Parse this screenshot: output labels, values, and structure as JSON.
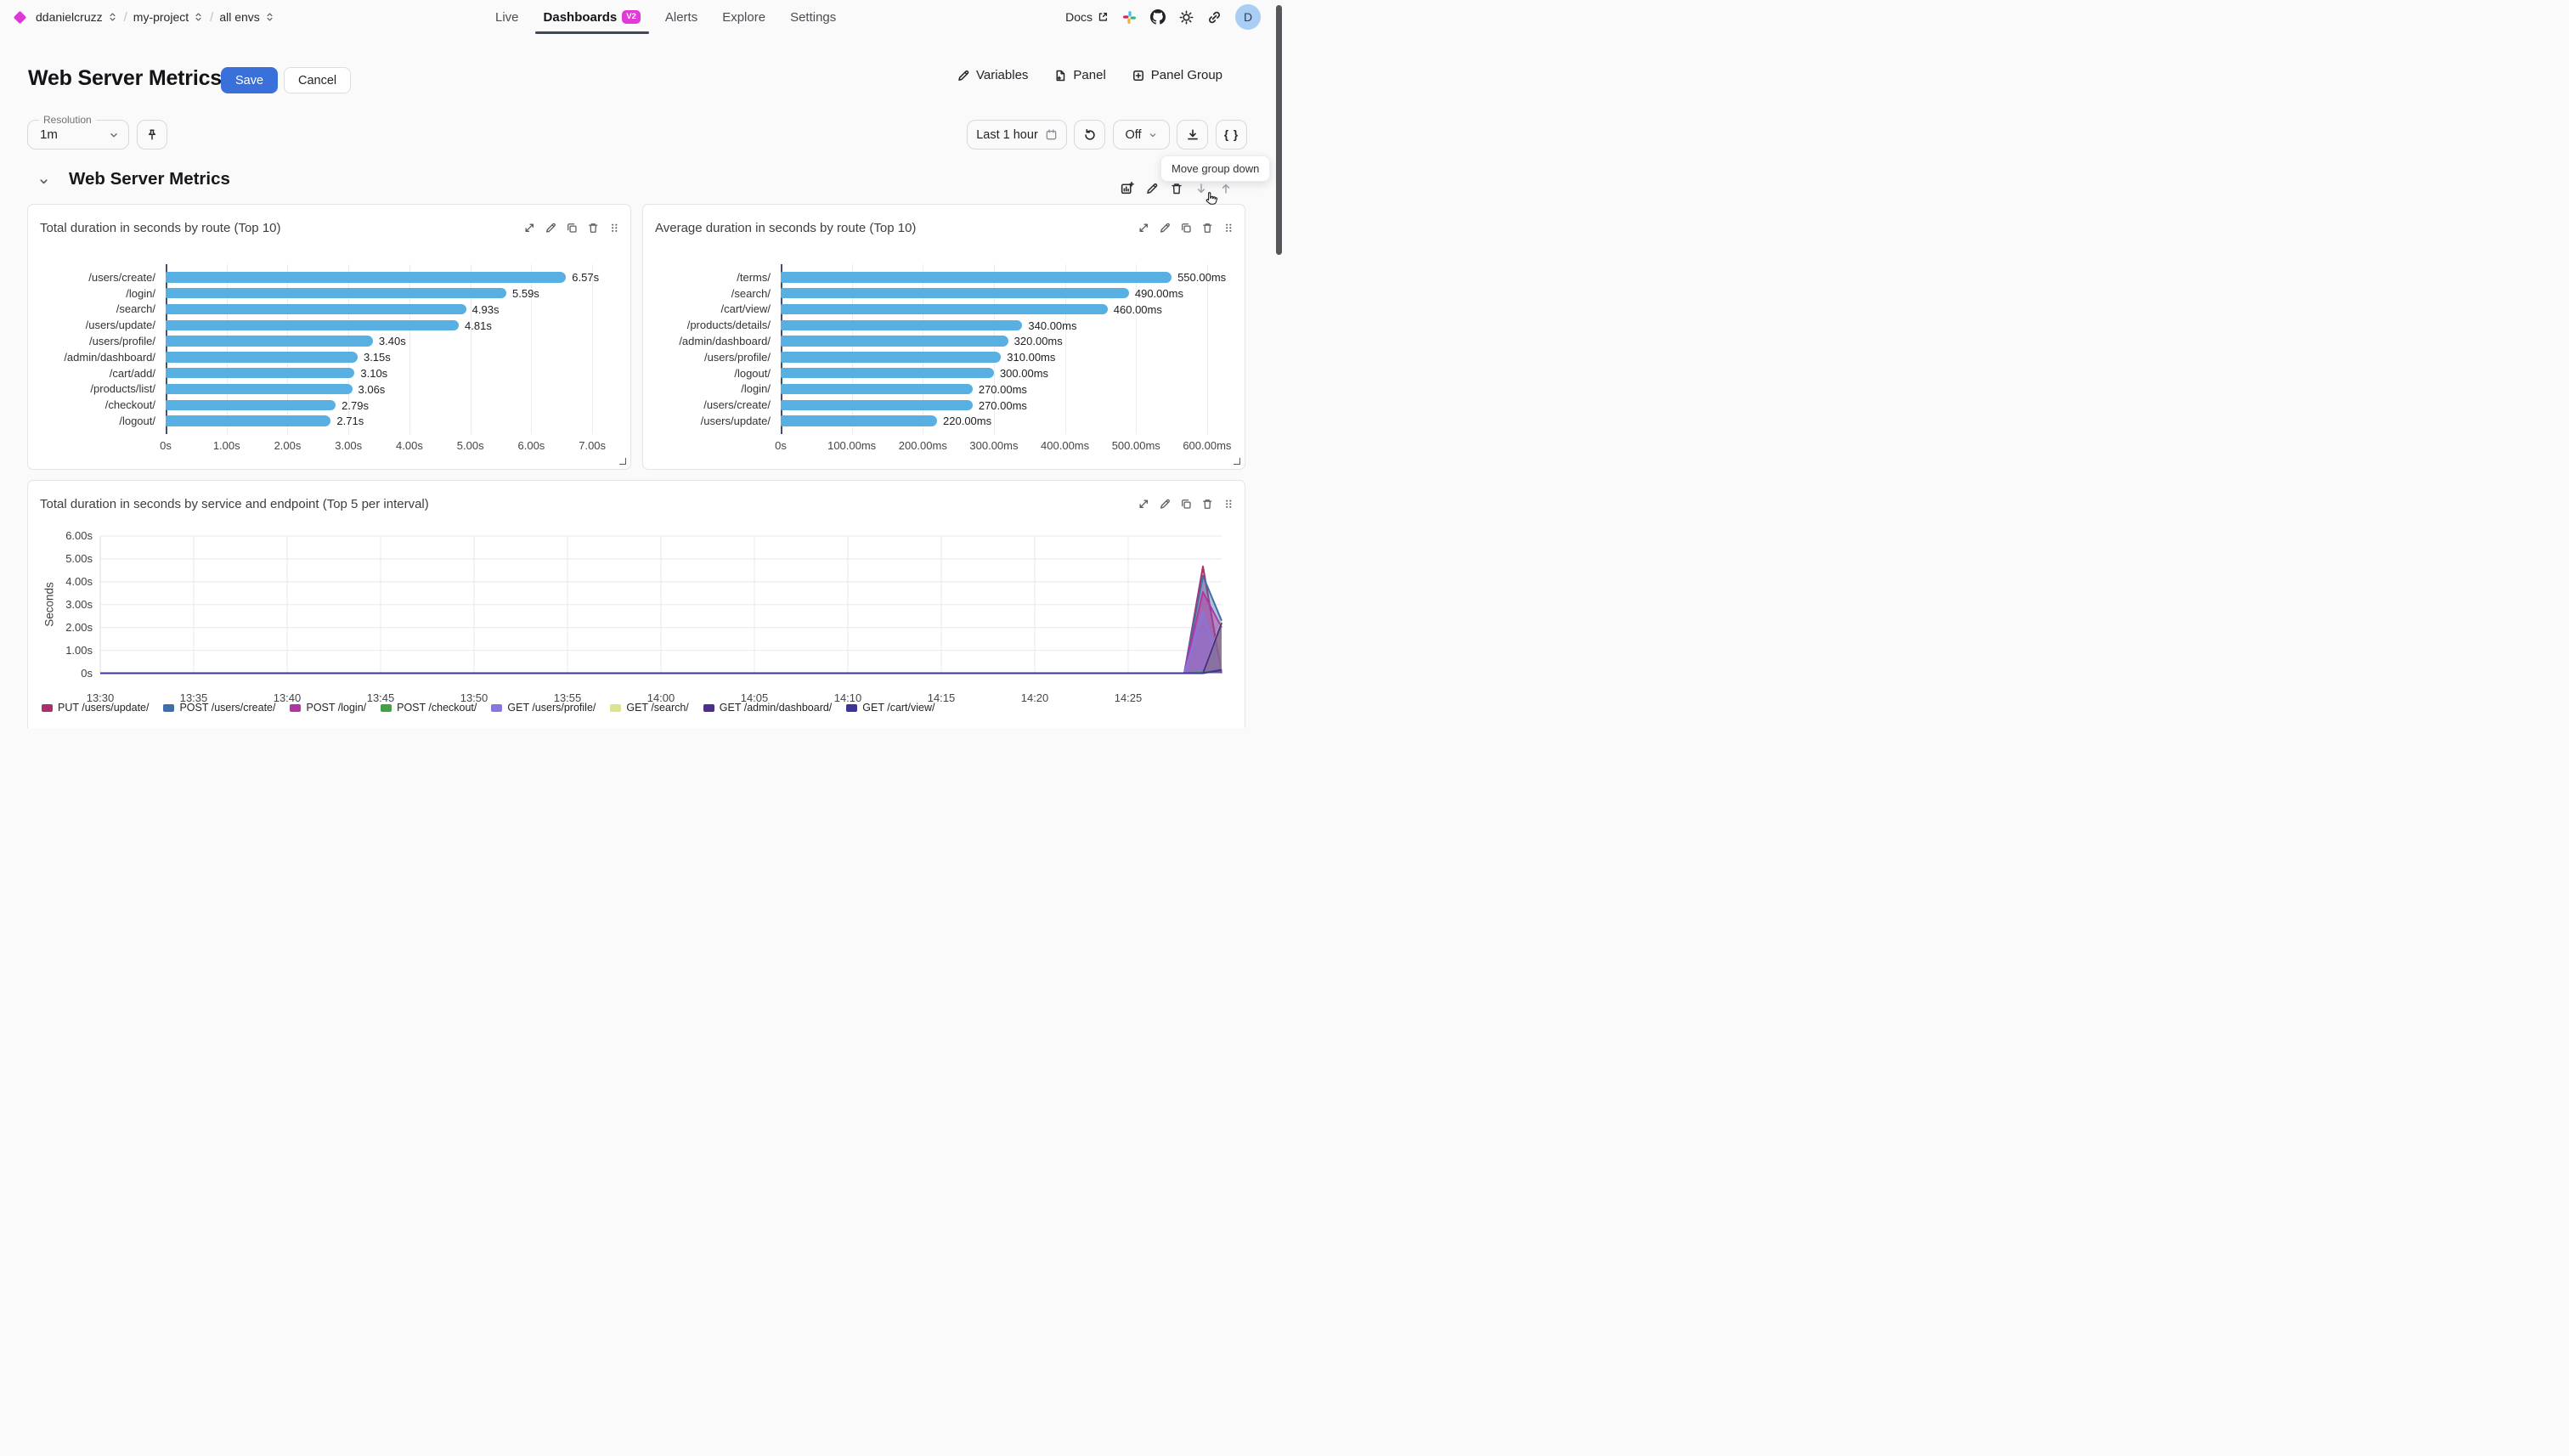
{
  "topnav": {
    "breadcrumb": {
      "org": "ddanielcruzz",
      "project": "my-project",
      "env": "all envs",
      "separator": "/"
    },
    "tabs": [
      {
        "label": "Live"
      },
      {
        "label": "Dashboards",
        "badge": "V2",
        "active": true
      },
      {
        "label": "Alerts"
      },
      {
        "label": "Explore"
      },
      {
        "label": "Settings"
      }
    ],
    "docs_label": "Docs",
    "avatar_initial": "D"
  },
  "header": {
    "title": "Web Server Metrics",
    "save_label": "Save",
    "cancel_label": "Cancel",
    "actions": [
      {
        "label": "Variables",
        "icon": "pencil-icon"
      },
      {
        "label": "Panel",
        "icon": "file-plus-icon"
      },
      {
        "label": "Panel Group",
        "icon": "square-plus-icon"
      }
    ]
  },
  "toolbar": {
    "resolution_label": "Resolution",
    "resolution_value": "1m",
    "time_range": "Last 1 hour",
    "refresh_mode": "Off",
    "code_label": "{ }",
    "tooltip": "Move group down"
  },
  "group": {
    "title": "Web Server Metrics"
  },
  "colors": {
    "accent_blue": "#3a70d9",
    "bar_blue": "#58afe2",
    "badge_magenta": "#e23ad6",
    "brand_magenta": "#d93bd4"
  },
  "chart_data": [
    {
      "type": "bar",
      "orientation": "horizontal",
      "title": "Total duration in seconds by route (Top 10)",
      "categories": [
        "/users/create/",
        "/login/",
        "/search/",
        "/users/update/",
        "/users/profile/",
        "/admin/dashboard/",
        "/cart/add/",
        "/products/list/",
        "/checkout/",
        "/logout/"
      ],
      "values": [
        6.57,
        5.59,
        4.93,
        4.81,
        3.4,
        3.15,
        3.1,
        3.06,
        2.79,
        2.71
      ],
      "value_labels": [
        "6.57s",
        "5.59s",
        "4.93s",
        "4.81s",
        "3.40s",
        "3.15s",
        "3.10s",
        "3.06s",
        "2.79s",
        "2.71s"
      ],
      "tick_values": [
        0,
        1,
        2,
        3,
        4,
        5,
        6,
        7
      ],
      "tick_labels": [
        "0s",
        "1.00s",
        "2.00s",
        "3.00s",
        "4.00s",
        "5.00s",
        "6.00s",
        "7.00s"
      ],
      "xmax": 7.43,
      "bar_color": "#58afe2"
    },
    {
      "type": "bar",
      "orientation": "horizontal",
      "title": "Average duration in seconds by route (Top 10)",
      "categories": [
        "/terms/",
        "/search/",
        "/cart/view/",
        "/products/details/",
        "/admin/dashboard/",
        "/users/profile/",
        "/logout/",
        "/login/",
        "/users/create/",
        "/users/update/"
      ],
      "values": [
        550,
        490,
        460,
        340,
        320,
        310,
        300,
        270,
        270,
        220
      ],
      "value_labels": [
        "550.00ms",
        "490.00ms",
        "460.00ms",
        "340.00ms",
        "320.00ms",
        "310.00ms",
        "300.00ms",
        "270.00ms",
        "270.00ms",
        "220.00ms"
      ],
      "tick_values": [
        0,
        100,
        200,
        300,
        400,
        500,
        600
      ],
      "tick_labels": [
        "0s",
        "100.00ms",
        "200.00ms",
        "300.00ms",
        "400.00ms",
        "500.00ms",
        "600.00ms"
      ],
      "xmax": 636,
      "bar_color": "#58afe2"
    },
    {
      "type": "area",
      "title": "Total duration in seconds by service and endpoint (Top 5 per interval)",
      "ylabel": "Seconds",
      "ylim": [
        0,
        6
      ],
      "ytick_values": [
        0,
        1,
        2,
        3,
        4,
        5,
        6
      ],
      "ytick_labels": [
        "0s",
        "1.00s",
        "2.00s",
        "3.00s",
        "4.00s",
        "5.00s",
        "6.00s"
      ],
      "xtick_minutes": [
        0,
        5,
        10,
        15,
        20,
        25,
        30,
        35,
        40,
        45,
        50,
        55
      ],
      "xtick_labels": [
        "13:30",
        "13:35",
        "13:40",
        "13:45",
        "13:50",
        "13:55",
        "14:00",
        "14:05",
        "14:10",
        "14:15",
        "14:20",
        "14:25"
      ],
      "x_span_minutes": 60,
      "series": [
        {
          "name": "PUT /users/update/",
          "color": "#ab2f6d",
          "points": [
            [
              0,
              0
            ],
            [
              58,
              0
            ],
            [
              59,
              4.67
            ],
            [
              60,
              0
            ]
          ]
        },
        {
          "name": "POST /users/create/",
          "color": "#3f6fa8",
          "points": [
            [
              0,
              0
            ],
            [
              58,
              0
            ],
            [
              59,
              4.26
            ],
            [
              60,
              2.3
            ]
          ]
        },
        {
          "name": "POST /login/",
          "color": "#b335a5",
          "points": [
            [
              0,
              0
            ],
            [
              58,
              0
            ],
            [
              59,
              3.55
            ],
            [
              60,
              2.0
            ]
          ]
        },
        {
          "name": "POST /checkout/",
          "color": "#44a044",
          "points": [
            [
              0,
              0
            ],
            [
              58,
              0
            ],
            [
              59,
              0.08
            ],
            [
              60,
              0.05
            ]
          ]
        },
        {
          "name": "GET /users/profile/",
          "color": "#8577de",
          "points": [
            [
              0,
              0
            ],
            [
              58,
              0
            ],
            [
              59,
              2.7
            ],
            [
              60,
              0
            ]
          ]
        },
        {
          "name": "GET /search/",
          "color": "#dce48f",
          "points": [
            [
              0,
              0
            ],
            [
              59,
              0
            ],
            [
              60,
              2.25
            ]
          ]
        },
        {
          "name": "GET /admin/dashboard/",
          "color": "#4d2e8c",
          "points": [
            [
              0,
              0
            ],
            [
              59,
              0
            ],
            [
              60,
              2.2
            ]
          ]
        },
        {
          "name": "GET /cart/view/",
          "color": "#3b3597",
          "points": [
            [
              0,
              0
            ],
            [
              59,
              0
            ],
            [
              60,
              0.15
            ]
          ]
        }
      ]
    }
  ]
}
